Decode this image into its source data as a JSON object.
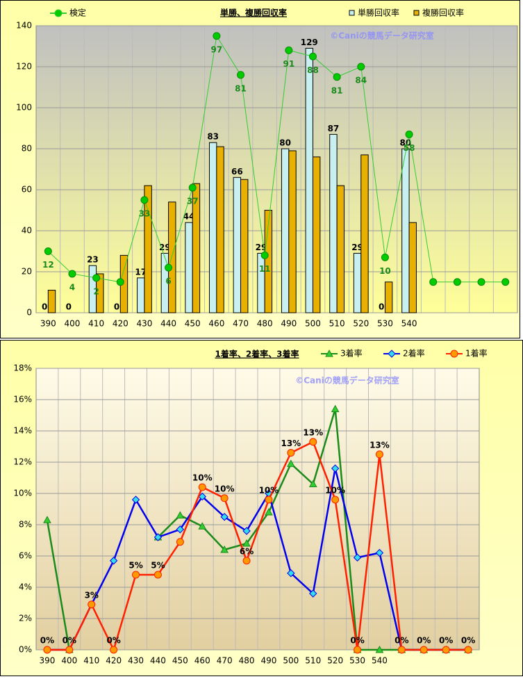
{
  "chart_data": [
    {
      "type": "bar",
      "title": "単勝、複勝回収率",
      "watermark": "©Caniの競馬データ研究室",
      "categories": [
        "390",
        "400",
        "410",
        "420",
        "430",
        "440",
        "450",
        "460",
        "470",
        "480",
        "490",
        "500",
        "510",
        "520",
        "530",
        "540",
        null,
        null,
        null,
        null
      ],
      "ylim": [
        0,
        140
      ],
      "yticks": [
        0,
        20,
        40,
        60,
        80,
        100,
        120,
        140
      ],
      "grid": true,
      "series": [
        {
          "name": "検定",
          "type": "line",
          "color": "#33cc33",
          "marker": "circle",
          "marker_color": "#00cc00",
          "values": [
            30,
            19,
            17,
            15,
            55,
            22,
            61,
            135,
            116,
            28,
            128,
            125,
            115,
            120,
            27,
            87,
            15,
            15,
            15,
            15
          ],
          "labels": [
            12,
            4,
            2,
            null,
            33,
            6,
            37,
            97,
            81,
            11,
            91,
            88,
            81,
            84,
            10,
            58,
            null,
            null,
            null,
            null
          ]
        },
        {
          "name": "単勝回収率",
          "type": "bar",
          "color": "#c8f0f0",
          "values": [
            0,
            0,
            23,
            0,
            17,
            29,
            44,
            83,
            66,
            29,
            80,
            129,
            87,
            29,
            0,
            80,
            null,
            null,
            null,
            null
          ]
        },
        {
          "name": "複勝回収率",
          "type": "bar",
          "color": "#e8b000",
          "values": [
            11,
            0,
            19,
            28,
            62,
            54,
            63,
            81,
            65,
            50,
            79,
            76,
            62,
            77,
            15,
            44,
            null,
            null,
            null,
            null
          ]
        }
      ]
    },
    {
      "type": "line",
      "title": "1着率、2着率、3着率",
      "watermark": "©Caniの競馬データ研究室",
      "categories": [
        "390",
        "400",
        "410",
        "420",
        "430",
        "440",
        "450",
        "460",
        "470",
        "480",
        "490",
        "500",
        "510",
        "520",
        "530",
        "540",
        null,
        null,
        null,
        null
      ],
      "ylim": [
        0,
        18
      ],
      "grid": true,
      "yticks": [
        {
          "value": 0,
          "label": "0%"
        },
        {
          "value": 2,
          "label": "2%"
        },
        {
          "value": 4,
          "label": "4%"
        },
        {
          "value": 6,
          "label": "6%"
        },
        {
          "value": 8,
          "label": "8%"
        },
        {
          "value": 10,
          "label": "10%"
        },
        {
          "value": 12,
          "label": "12%"
        },
        {
          "value": 14,
          "label": "14%"
        },
        {
          "value": 16,
          "label": "16%"
        },
        {
          "value": 18,
          "label": "18%"
        }
      ],
      "series": [
        {
          "name": "3着率",
          "color": "#1a8a1a",
          "marker": "triangle",
          "marker_color": "#33cc33",
          "values": [
            8.3,
            0,
            null,
            null,
            null,
            7.2,
            8.6,
            7.9,
            6.4,
            6.8,
            8.8,
            11.9,
            10.6,
            15.4,
            0,
            0,
            0,
            0,
            0,
            0
          ]
        },
        {
          "name": "2着率",
          "color": "#0000ee",
          "marker": "diamond",
          "marker_color": "#33ddee",
          "values": [
            0,
            0,
            2.9,
            5.7,
            9.6,
            7.2,
            7.7,
            9.8,
            8.5,
            7.6,
            10.0,
            4.9,
            3.6,
            11.6,
            5.9,
            6.2,
            0,
            0,
            0,
            0
          ]
        },
        {
          "name": "1着率",
          "color": "#ff2000",
          "marker": "circle",
          "marker_color": "#ff9900",
          "values": [
            0,
            0,
            2.9,
            0,
            4.8,
            4.8,
            6.9,
            10.4,
            9.7,
            5.7,
            9.6,
            12.6,
            13.3,
            9.6,
            0,
            12.5,
            0,
            0,
            0,
            0
          ],
          "value_labels": [
            "0%",
            "0%",
            "3%",
            "0%",
            "5%",
            "5%",
            null,
            "10%",
            "10%",
            "6%",
            "10%",
            "13%",
            "13%",
            "10%",
            "0%",
            "13%",
            "0%",
            "0%",
            "0%",
            "0%"
          ]
        }
      ]
    }
  ]
}
